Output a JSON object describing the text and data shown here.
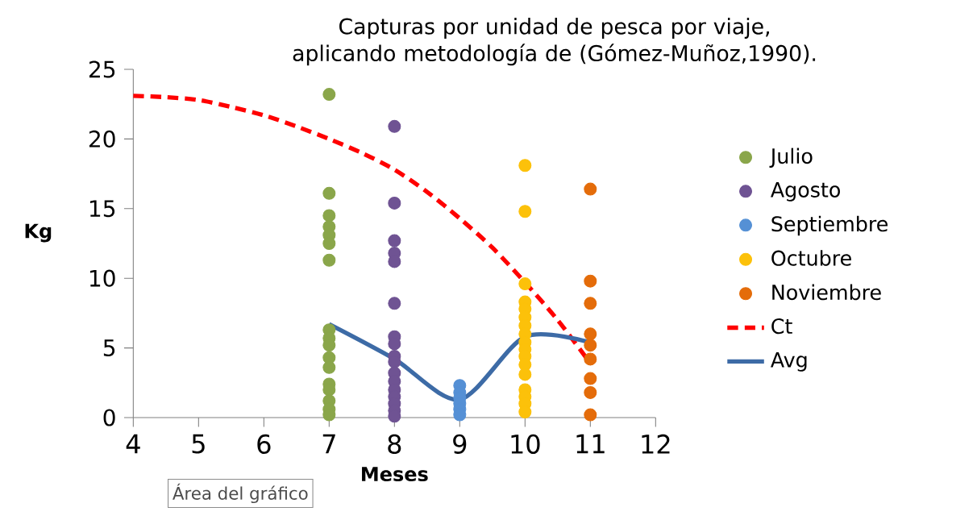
{
  "chart_data": {
    "type": "scatter",
    "title": "Capturas por unidad de pesca por viaje, aplicando metodología de (Gómez-Muñoz,1990).",
    "xlabel": "Meses",
    "ylabel": "Kg",
    "xlim": [
      4,
      12
    ],
    "xticks": [
      4,
      5,
      6,
      7,
      8,
      9,
      10,
      11,
      12
    ],
    "ylim": [
      0,
      25
    ],
    "yticks": [
      0,
      5,
      10,
      15,
      20,
      25
    ],
    "grid": false,
    "legend": "right",
    "marker": "circle",
    "annotations": [
      "Área del gráfico"
    ],
    "series": [
      {
        "name": "Julio",
        "color": "#8aa64a",
        "x": [
          7,
          7,
          7,
          7,
          7,
          7,
          7,
          7,
          7,
          7,
          7,
          7,
          7,
          7,
          7,
          7,
          7
        ],
        "values": [
          23.2,
          16.1,
          14.5,
          13.7,
          13.1,
          12.5,
          11.3,
          6.3,
          5.7,
          5.2,
          4.3,
          3.6,
          2.4,
          2.0,
          1.2,
          0.6,
          0.2
        ]
      },
      {
        "name": "Agosto",
        "color": "#6f5393",
        "x": [
          8,
          8,
          8,
          8,
          8,
          8,
          8,
          8,
          8,
          8,
          8,
          8,
          8,
          8,
          8,
          8,
          8
        ],
        "values": [
          20.9,
          15.4,
          12.7,
          11.8,
          11.2,
          8.2,
          5.8,
          5.3,
          4.4,
          4.0,
          3.2,
          2.6,
          2.0,
          1.5,
          1.0,
          0.5,
          0.1
        ]
      },
      {
        "name": "Septiembre",
        "color": "#5590d5",
        "x": [
          9,
          9,
          9,
          9,
          9,
          9
        ],
        "values": [
          2.3,
          1.8,
          1.4,
          1.0,
          0.6,
          0.2
        ]
      },
      {
        "name": "Octubre",
        "color": "#fcc10a",
        "x": [
          10,
          10,
          10,
          10,
          10,
          10,
          10,
          10,
          10,
          10,
          10,
          10,
          10,
          10,
          10,
          10,
          10
        ],
        "values": [
          18.1,
          14.8,
          9.6,
          8.3,
          7.8,
          7.2,
          6.6,
          6.0,
          5.4,
          4.9,
          4.4,
          3.8,
          3.1,
          2.0,
          1.5,
          1.0,
          0.4
        ]
      },
      {
        "name": "Noviembre",
        "color": "#e46c0a",
        "x": [
          11,
          11,
          11,
          11,
          11,
          11,
          11,
          11,
          11
        ],
        "values": [
          16.4,
          9.8,
          8.2,
          6.0,
          5.2,
          4.2,
          2.8,
          1.8,
          0.2
        ]
      },
      {
        "name": "Ct",
        "type": "line",
        "color": "#ff0000",
        "line_style": "dashed",
        "marker": "none",
        "x": [
          4,
          4.5,
          5,
          5.5,
          6,
          6.5,
          7,
          7.5,
          8,
          8.5,
          9,
          9.5,
          10,
          10.5,
          11
        ],
        "values": [
          23.1,
          23.0,
          22.8,
          22.3,
          21.7,
          20.9,
          20.0,
          19.0,
          17.8,
          16.2,
          14.3,
          12.2,
          9.7,
          7.0,
          3.9
        ]
      },
      {
        "name": "Avg",
        "type": "line",
        "color": "#3d6ba6",
        "line_style": "solid",
        "marker": "none",
        "x": [
          7,
          8,
          9,
          10,
          11
        ],
        "values": [
          6.7,
          4.2,
          1.3,
          5.8,
          5.4
        ]
      }
    ]
  }
}
